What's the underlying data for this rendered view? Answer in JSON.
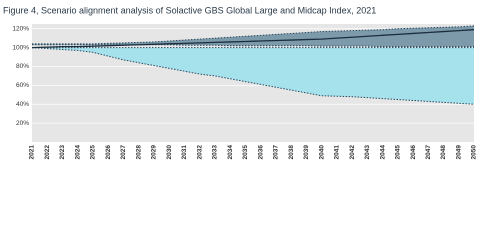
{
  "chart_data": {
    "type": "area_lines",
    "title": "Figure 4, Scenario alignment analysis of Solactive GBS Global Large and Midcap Index, 2021",
    "categories": [
      "2021",
      "2022",
      "2023",
      "2024",
      "2025",
      "2026",
      "2027",
      "2028",
      "2029",
      "2030",
      "2031",
      "2032",
      "2033",
      "2034",
      "2035",
      "2036",
      "2037",
      "2038",
      "2039",
      "2040",
      "2041",
      "2042",
      "2043",
      "2044",
      "2045",
      "2046",
      "2047",
      "2048",
      "2049",
      "2050"
    ],
    "series": [
      {
        "color": "#2b4a5e",
        "style": "dotted",
        "values": [
          100,
          99,
          98,
          97,
          95,
          91,
          87,
          84,
          81,
          78,
          75,
          72,
          70,
          67,
          64,
          61,
          58,
          55,
          52,
          49,
          48.5,
          48,
          47,
          46,
          45,
          44,
          43,
          42,
          41,
          40
        ]
      },
      {
        "color": "#2b4a5e",
        "style": "dotted",
        "values": [
          100,
          100,
          100,
          100,
          100,
          100,
          100,
          100,
          100,
          100,
          100,
          100,
          100,
          100,
          100,
          100,
          100,
          100,
          100,
          100,
          100,
          100,
          100,
          100,
          100,
          100,
          100,
          100,
          100,
          100
        ]
      },
      {
        "color": "#2b4a5e",
        "style": "dotted",
        "values": [
          103,
          103,
          103,
          103,
          103,
          103,
          103,
          103,
          103,
          103,
          102.5,
          102.5,
          102.5,
          102,
          102,
          102,
          102,
          102,
          102,
          101.5,
          101.5,
          101.5,
          101.5,
          101,
          101,
          101,
          101,
          101,
          101,
          101
        ]
      },
      {
        "color": "#2b4a5e",
        "style": "dotted",
        "values": [
          104,
          104,
          104,
          104,
          104,
          104.5,
          105,
          105.5,
          106,
          107,
          108,
          109,
          110,
          111,
          112,
          113,
          114,
          115,
          116,
          117,
          117.5,
          118,
          118.5,
          119,
          120,
          120.5,
          121,
          121.5,
          122,
          123
        ]
      },
      {
        "color": "#1a2e3d",
        "style": "solid",
        "values": [
          100,
          100.5,
          101,
          101,
          101.5,
          102,
          102.5,
          103,
          103.5,
          104,
          104.5,
          105,
          105.5,
          106,
          106.5,
          107,
          107.5,
          108,
          108.5,
          109,
          110,
          111,
          112,
          113,
          114,
          115,
          116,
          117,
          118,
          119
        ]
      }
    ],
    "fills": [
      {
        "between": [
          0,
          1
        ],
        "color": "#a6e2ec"
      },
      {
        "between": [
          2,
          3
        ],
        "color": "#7d9aab"
      }
    ],
    "background": "#e6e6e6",
    "ylim": [
      0,
      125
    ],
    "yticks": [
      {
        "value": 20,
        "label": "20%"
      },
      {
        "value": 40,
        "label": "40%"
      },
      {
        "value": 60,
        "label": "60%"
      },
      {
        "value": 80,
        "label": "80%"
      },
      {
        "value": 100,
        "label": "100%"
      },
      {
        "value": 120,
        "label": "120%"
      }
    ],
    "grid": true
  }
}
